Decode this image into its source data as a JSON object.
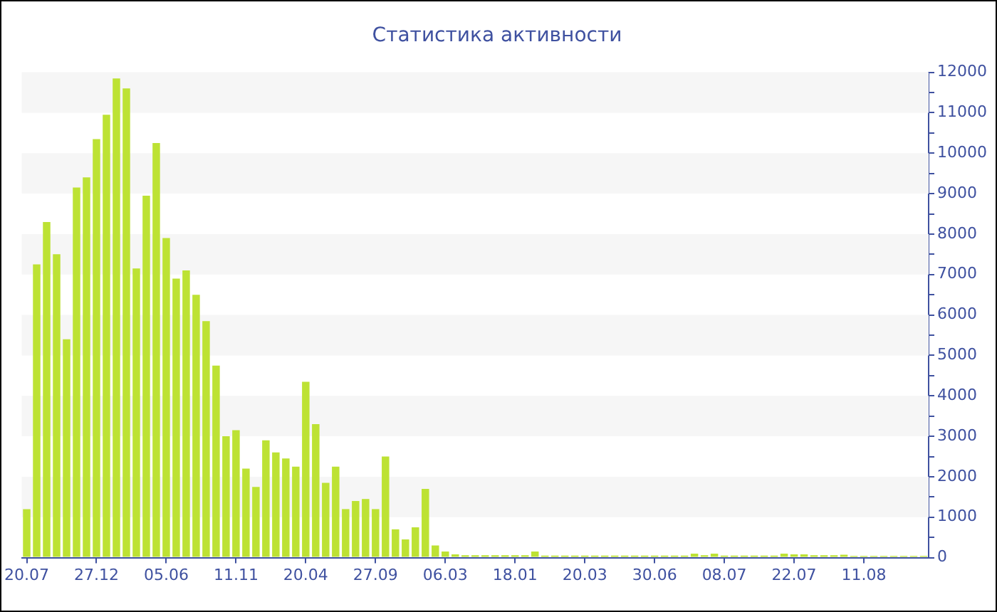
{
  "chart_data": {
    "type": "bar",
    "title": "Статистика активности",
    "categories": [
      "20.07",
      null,
      null,
      null,
      null,
      null,
      null,
      "27.12",
      null,
      null,
      null,
      null,
      null,
      null,
      "05.06",
      null,
      null,
      null,
      null,
      null,
      null,
      "11.11",
      null,
      null,
      null,
      null,
      null,
      null,
      "20.04",
      null,
      null,
      null,
      null,
      null,
      null,
      "27.09",
      null,
      null,
      null,
      null,
      null,
      null,
      "06.03",
      null,
      null,
      null,
      null,
      null,
      null,
      "18.01",
      null,
      null,
      null,
      null,
      null,
      null,
      "20.03",
      null,
      null,
      null,
      null,
      null,
      null,
      "30.06",
      null,
      null,
      null,
      null,
      null,
      null,
      "08.07",
      null,
      null,
      null,
      null,
      null,
      null,
      "22.07",
      null,
      null,
      null,
      null,
      null,
      null,
      "11.08",
      null,
      null,
      null,
      null,
      null,
      null
    ],
    "values": [
      1200,
      7250,
      8300,
      7500,
      5400,
      9150,
      9400,
      10350,
      10950,
      11850,
      11600,
      7150,
      8950,
      10250,
      7900,
      6900,
      7100,
      6500,
      5850,
      4750,
      3000,
      3150,
      2200,
      1750,
      2900,
      2600,
      2450,
      2250,
      4350,
      3300,
      1850,
      2250,
      1200,
      1400,
      1450,
      1200,
      2500,
      700,
      450,
      750,
      1700,
      300,
      150,
      80,
      60,
      60,
      60,
      60,
      60,
      60,
      60,
      150,
      50,
      50,
      50,
      50,
      50,
      50,
      50,
      50,
      50,
      50,
      50,
      50,
      50,
      50,
      50,
      100,
      60,
      100,
      50,
      50,
      50,
      50,
      50,
      50,
      100,
      80,
      80,
      60,
      60,
      60,
      70,
      40,
      40,
      40,
      40,
      40,
      40,
      40,
      40
    ],
    "color": "#bde234",
    "ylim": [
      0,
      12000
    ],
    "yticks": [
      0,
      {
        "value": 500,
        "label": null
      },
      1000,
      {
        "value": 1500,
        "label": null
      },
      2000,
      {
        "value": 2500,
        "label": null
      },
      3000,
      {
        "value": 3500,
        "label": null
      },
      4000,
      {
        "value": 4500,
        "label": null
      },
      5000,
      {
        "value": 5500,
        "label": null
      },
      6000,
      {
        "value": 6500,
        "label": null
      },
      7000,
      {
        "value": 7500,
        "label": null
      },
      8000,
      {
        "value": 8500,
        "label": null
      },
      9000,
      {
        "value": 9500,
        "label": null
      },
      10000,
      {
        "value": 10500,
        "label": null
      },
      11000,
      {
        "value": 11500,
        "label": null
      },
      12000
    ],
    "bands": [
      {
        "axis": "y",
        "from": 1000,
        "to": 2000,
        "color": "#f6f6f6"
      },
      {
        "axis": "y",
        "from": 3000,
        "to": 4000,
        "color": "#f6f6f6"
      },
      {
        "axis": "y",
        "from": 5000,
        "to": 6000,
        "color": "#f6f6f6"
      },
      {
        "axis": "y",
        "from": 7000,
        "to": 8000,
        "color": "#f6f6f6"
      },
      {
        "axis": "y",
        "from": 9000,
        "to": 10000,
        "color": "#f6f6f6"
      },
      {
        "axis": "y",
        "from": 11000,
        "to": 12000,
        "color": "#f6f6f6"
      }
    ]
  }
}
